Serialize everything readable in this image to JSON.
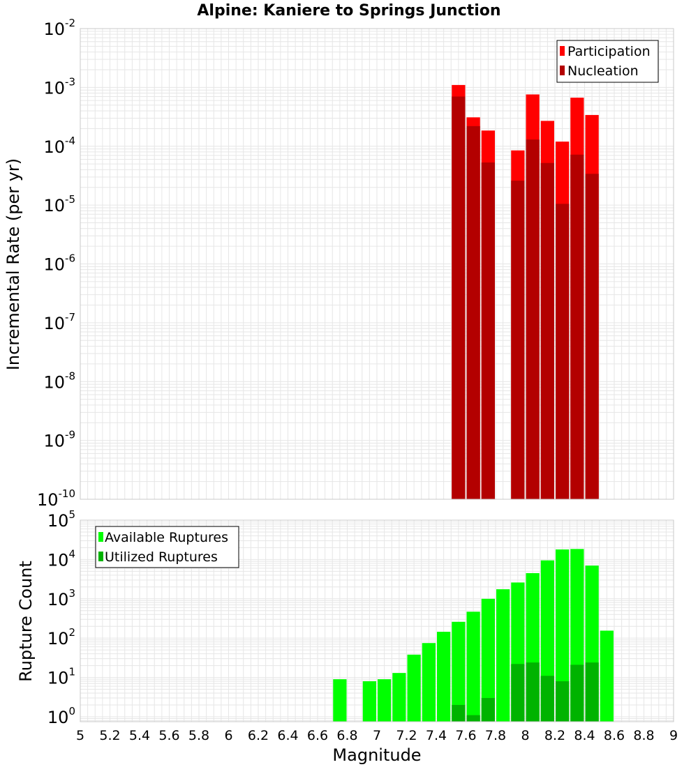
{
  "title": "Alpine: Kaniere to Springs Junction",
  "x_axis": {
    "label": "Magnitude",
    "range": [
      5,
      9
    ],
    "ticks": [
      "5",
      "5.2",
      "5.4",
      "5.6",
      "5.8",
      "6",
      "6.2",
      "6.4",
      "6.6",
      "6.8",
      "7",
      "7.2",
      "7.4",
      "7.6",
      "7.8",
      "8",
      "8.2",
      "8.4",
      "8.6",
      "8.8",
      "9"
    ]
  },
  "colors": {
    "participation": "#ff0000",
    "nucleation": "#b30000",
    "available": "#00ff00",
    "utilized": "#00b300",
    "grid": "#e6e6e6",
    "frame": "#c8c8c8"
  },
  "chart_data": [
    {
      "type": "bar",
      "name": "rate-chart",
      "title": "Alpine: Kaniere to Springs Junction",
      "xlabel": "",
      "ylabel": "Incremental Rate (per yr)",
      "yscale": "log",
      "ylim": [
        1e-10,
        0.01
      ],
      "y_ticks": [
        {
          "base": "10",
          "exp": "-10",
          "value": 1e-10
        },
        {
          "base": "10",
          "exp": "-9",
          "value": 1e-09
        },
        {
          "base": "10",
          "exp": "-8",
          "value": 1e-08
        },
        {
          "base": "10",
          "exp": "-7",
          "value": 1e-07
        },
        {
          "base": "10",
          "exp": "-6",
          "value": 1e-06
        },
        {
          "base": "10",
          "exp": "-5",
          "value": 1e-05
        },
        {
          "base": "10",
          "exp": "-4",
          "value": 0.0001
        },
        {
          "base": "10",
          "exp": "-3",
          "value": 0.001
        },
        {
          "base": "10",
          "exp": "-2",
          "value": 0.01
        }
      ],
      "grid": true,
      "legend_position": "top-right",
      "series": [
        {
          "name": "Participation",
          "color": "#ff0000",
          "x": [
            7.55,
            7.65,
            7.75,
            7.95,
            8.05,
            8.15,
            8.25,
            8.35,
            8.45
          ],
          "values": [
            0.0011,
            0.00031,
            0.000185,
            8.5e-05,
            0.00076,
            0.00027,
            0.00012,
            0.00067,
            0.00034
          ]
        },
        {
          "name": "Nucleation",
          "color": "#b30000",
          "x": [
            7.55,
            7.65,
            7.75,
            7.95,
            8.05,
            8.15,
            8.25,
            8.35,
            8.45
          ],
          "values": [
            0.0007,
            0.00022,
            5.3e-05,
            2.6e-05,
            0.00013,
            5.2e-05,
            1.05e-05,
            7.2e-05,
            3.4e-05
          ]
        }
      ]
    },
    {
      "type": "bar",
      "name": "count-chart",
      "title": "",
      "xlabel": "Magnitude",
      "ylabel": "Rupture Count",
      "yscale": "log",
      "ylim": [
        0.75,
        100000.0
      ],
      "y_ticks": [
        {
          "base": "10",
          "exp": "0",
          "value": 1
        },
        {
          "base": "10",
          "exp": "1",
          "value": 10
        },
        {
          "base": "10",
          "exp": "2",
          "value": 100
        },
        {
          "base": "10",
          "exp": "3",
          "value": 1000
        },
        {
          "base": "10",
          "exp": "4",
          "value": 10000
        },
        {
          "base": "10",
          "exp": "5",
          "value": 100000
        }
      ],
      "grid": true,
      "legend_position": "top-left",
      "series": [
        {
          "name": "Available Ruptures",
          "color": "#00ff00",
          "x": [
            6.75,
            6.95,
            7.05,
            7.15,
            7.25,
            7.35,
            7.45,
            7.55,
            7.65,
            7.75,
            7.85,
            7.95,
            8.05,
            8.15,
            8.25,
            8.35,
            8.45,
            8.55
          ],
          "values": [
            9,
            8,
            9,
            13,
            38,
            75,
            145,
            260,
            470,
            1000,
            1750,
            2600,
            4500,
            9500,
            18000,
            18500,
            7000,
            155
          ]
        },
        {
          "name": "Utilized Ruptures",
          "color": "#00b300",
          "x": [
            7.55,
            7.65,
            7.75,
            7.95,
            8.05,
            8.15,
            8.25,
            8.35,
            8.45
          ],
          "values": [
            2,
            1.1,
            3,
            22,
            24,
            11,
            8,
            21,
            24
          ]
        }
      ]
    }
  ]
}
